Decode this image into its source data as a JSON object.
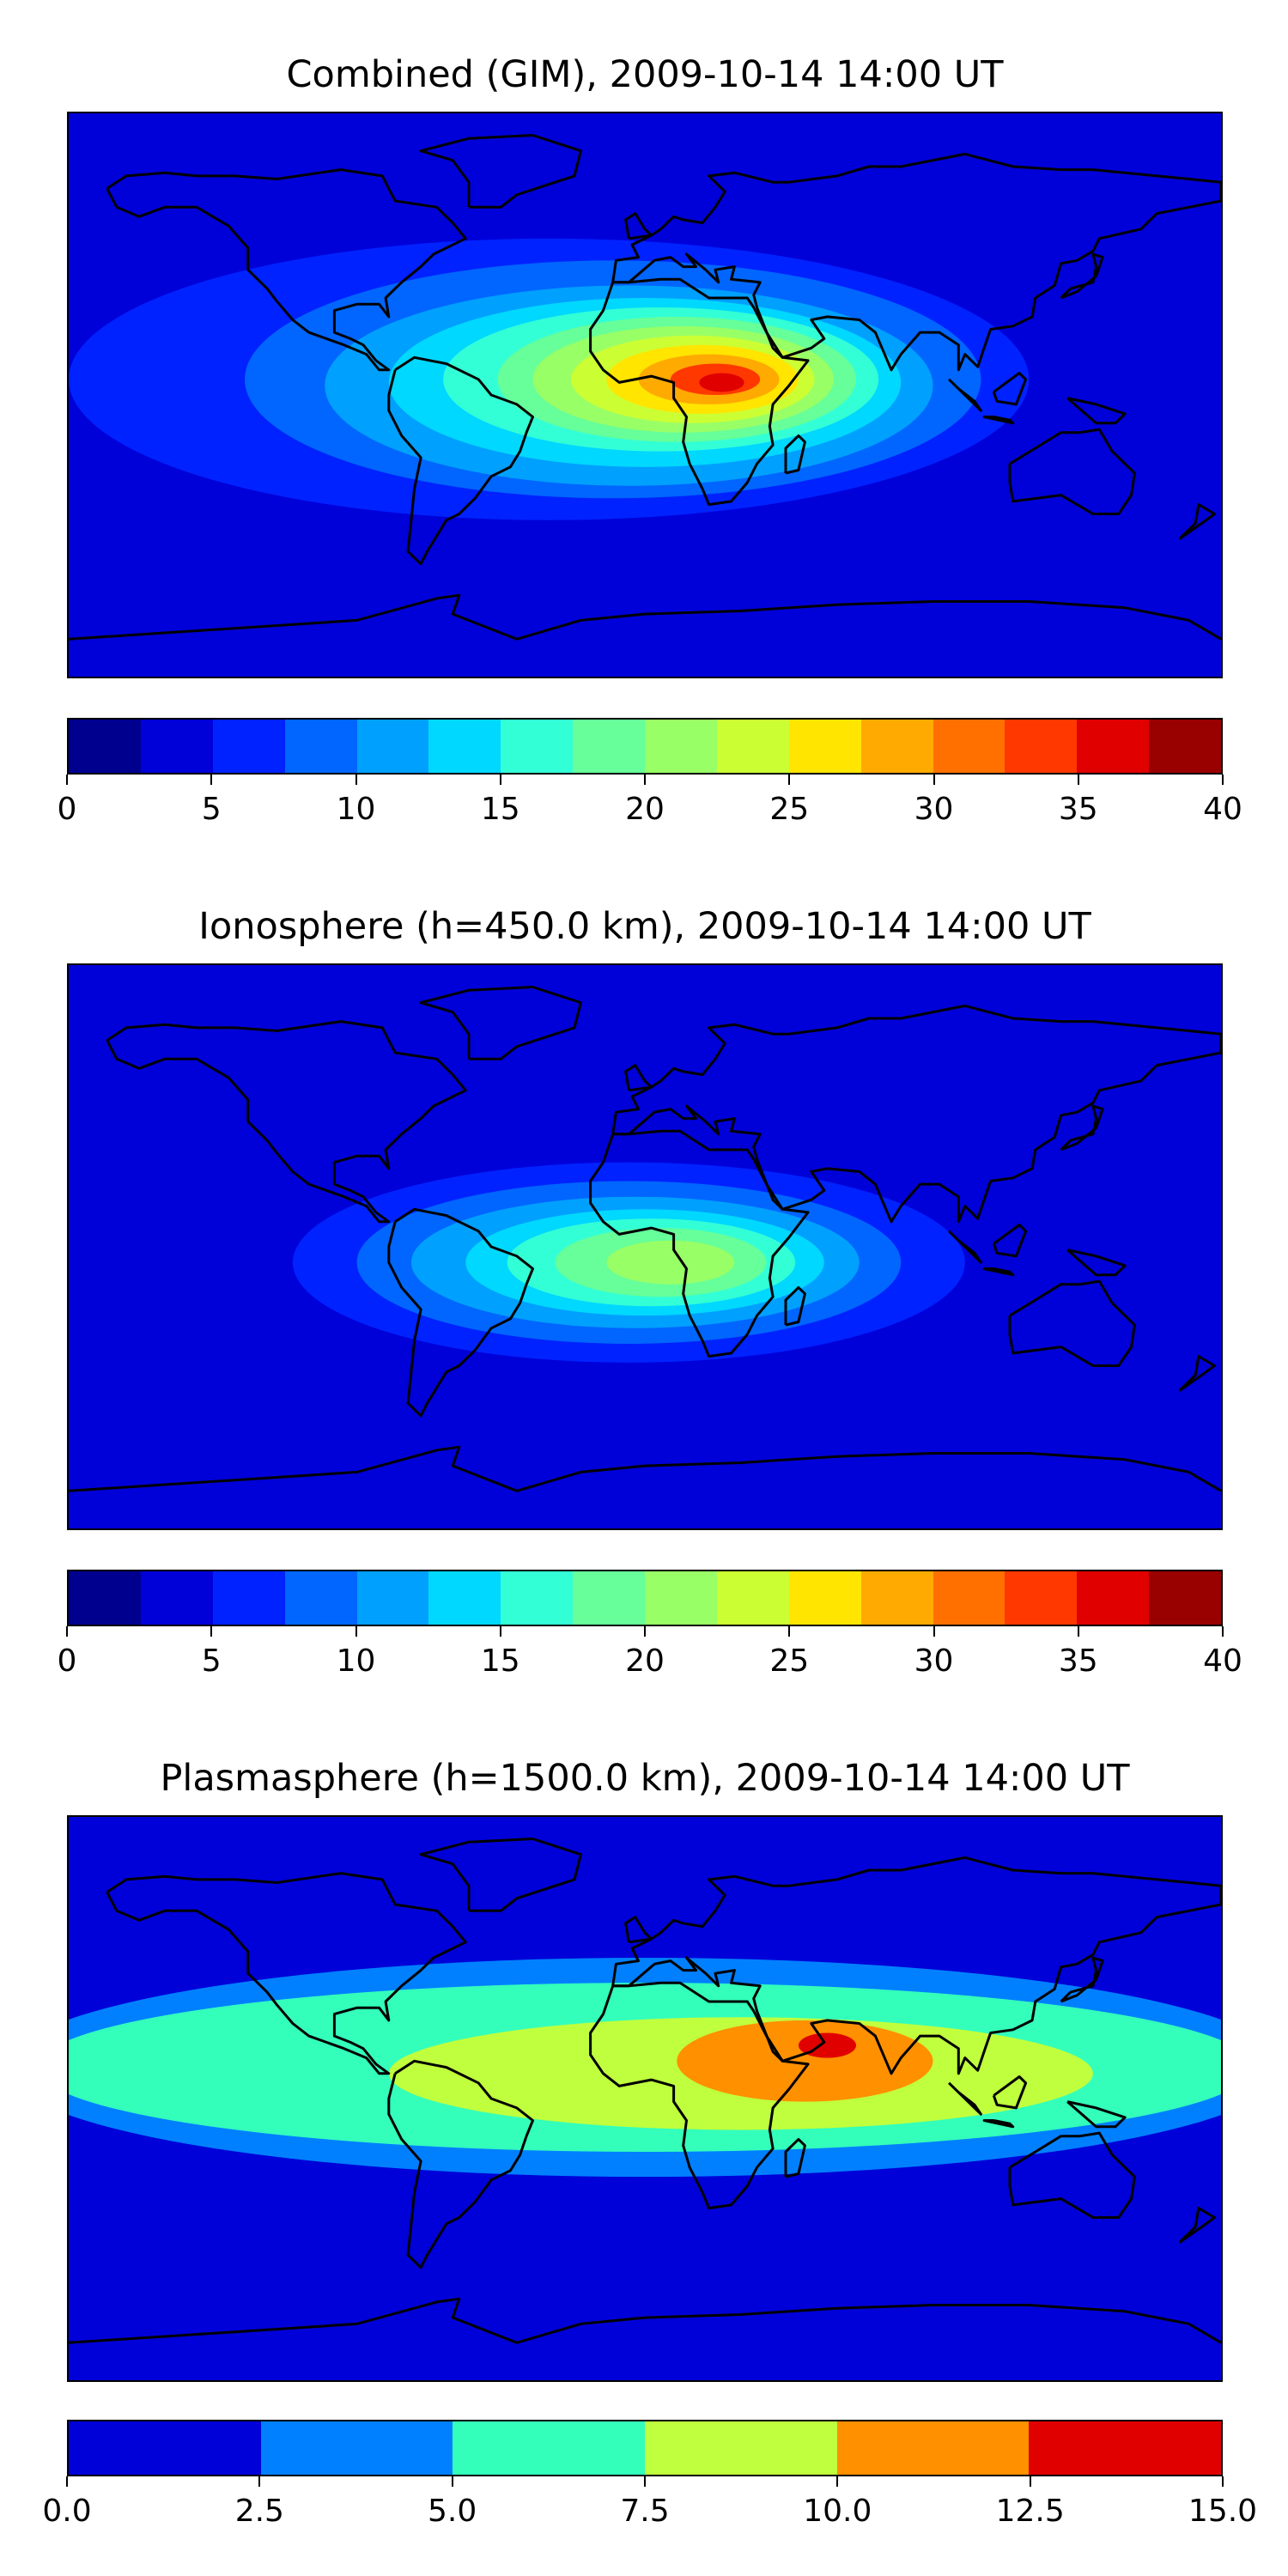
{
  "chart_data": [
    {
      "type": "heatmap",
      "title": "Combined (GIM), 2009-10-14 14:00 UT",
      "colorbar": {
        "ticks": [
          "0",
          "5",
          "10",
          "15",
          "20",
          "25",
          "30",
          "35",
          "40"
        ],
        "range": [
          0,
          40
        ],
        "levels": [
          "#00008f",
          "#0000d9",
          "#0022ff",
          "#0066ff",
          "#00a0ff",
          "#00d8ff",
          "#33ffd6",
          "#66ff99",
          "#99ff66",
          "#ccff33",
          "#ffe500",
          "#ffaa00",
          "#ff7000",
          "#ff3800",
          "#e00000",
          "#990000"
        ]
      },
      "field": {
        "background": "#0000d9",
        "blobs": [
          {
            "lon": -30,
            "lat": 5,
            "rx": 150,
            "ry": 45,
            "color": "#0022ff"
          },
          {
            "lon": -10,
            "lat": 5,
            "rx": 115,
            "ry": 38,
            "color": "#0066ff"
          },
          {
            "lon": -5,
            "lat": 3,
            "rx": 95,
            "ry": 32,
            "color": "#00a0ff"
          },
          {
            "lon": 0,
            "lat": 4,
            "rx": 80,
            "ry": 27,
            "color": "#00d8ff"
          },
          {
            "lon": 5,
            "lat": 5,
            "rx": 68,
            "ry": 23,
            "color": "#33ffd6"
          },
          {
            "lon": 10,
            "lat": 5,
            "rx": 56,
            "ry": 20,
            "color": "#66ff99"
          },
          {
            "lon": 12,
            "lat": 5,
            "rx": 47,
            "ry": 17,
            "color": "#99ff66"
          },
          {
            "lon": 15,
            "lat": 5,
            "rx": 38,
            "ry": 14,
            "color": "#ccff33"
          },
          {
            "lon": 18,
            "lat": 5,
            "rx": 30,
            "ry": 11,
            "color": "#ffe500"
          },
          {
            "lon": 20,
            "lat": 5,
            "rx": 22,
            "ry": 8,
            "color": "#ffaa00"
          },
          {
            "lon": 22,
            "lat": 5,
            "rx": 14,
            "ry": 5,
            "color": "#ff3800"
          },
          {
            "lon": 24,
            "lat": 4,
            "rx": 7,
            "ry": 3,
            "color": "#e00000"
          }
        ]
      }
    },
    {
      "type": "heatmap",
      "title": "Ionosphere  (h=450.0 km), 2009-10-14 14:00 UT",
      "colorbar": {
        "ticks": [
          "0",
          "5",
          "10",
          "15",
          "20",
          "25",
          "30",
          "35",
          "40"
        ],
        "range": [
          0,
          40
        ],
        "levels": [
          "#00008f",
          "#0000d9",
          "#0022ff",
          "#0066ff",
          "#00a0ff",
          "#00d8ff",
          "#33ffd6",
          "#66ff99",
          "#99ff66",
          "#ccff33",
          "#ffe500",
          "#ffaa00",
          "#ff7000",
          "#ff3800",
          "#e00000",
          "#990000"
        ]
      },
      "field": {
        "background": "#0000d9",
        "blobs": [
          {
            "lon": -5,
            "lat": -5,
            "rx": 105,
            "ry": 32,
            "color": "#0022ff"
          },
          {
            "lon": -5,
            "lat": -5,
            "rx": 85,
            "ry": 26,
            "color": "#0066ff"
          },
          {
            "lon": -3,
            "lat": -5,
            "rx": 70,
            "ry": 21,
            "color": "#00a0ff"
          },
          {
            "lon": 0,
            "lat": -5,
            "rx": 56,
            "ry": 17,
            "color": "#00d8ff"
          },
          {
            "lon": 2,
            "lat": -5,
            "rx": 45,
            "ry": 14,
            "color": "#33ffd6"
          },
          {
            "lon": 5,
            "lat": -5,
            "rx": 33,
            "ry": 11,
            "color": "#66ff99"
          },
          {
            "lon": 8,
            "lat": -5,
            "rx": 20,
            "ry": 7,
            "color": "#99ff66"
          }
        ]
      }
    },
    {
      "type": "heatmap",
      "title": "Plasmasphere (h=1500.0 km), 2009-10-14 14:00 UT",
      "colorbar": {
        "ticks": [
          "0.0",
          "2.5",
          "5.0",
          "7.5",
          "10.0",
          "12.5",
          "15.0"
        ],
        "range": [
          0,
          15
        ],
        "levels": [
          "#0000d9",
          "#0080ff",
          "#33ffbb",
          "#c0ff3d",
          "#ff9000",
          "#e00000"
        ]
      },
      "field": {
        "background": "#0000d9",
        "blobs": [
          {
            "lon": 0,
            "lat": 10,
            "rx": 200,
            "ry": 35,
            "color": "#0080ff"
          },
          {
            "lon": 0,
            "lat": 10,
            "rx": 190,
            "ry": 27,
            "color": "#33ffbb"
          },
          {
            "lon": 30,
            "lat": 8,
            "rx": 110,
            "ry": 18,
            "color": "#c0ff3d"
          },
          {
            "lon": 50,
            "lat": 12,
            "rx": 40,
            "ry": 13,
            "color": "#ff9000"
          },
          {
            "lon": 57,
            "lat": 17,
            "rx": 9,
            "ry": 4,
            "color": "#e00000"
          }
        ]
      }
    }
  ]
}
